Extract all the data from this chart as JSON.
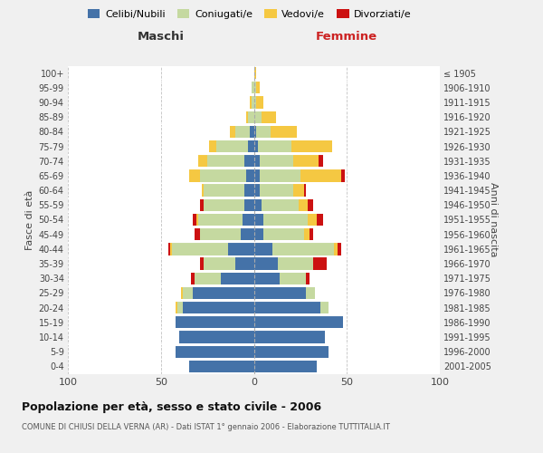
{
  "age_groups": [
    "0-4",
    "5-9",
    "10-14",
    "15-19",
    "20-24",
    "25-29",
    "30-34",
    "35-39",
    "40-44",
    "45-49",
    "50-54",
    "55-59",
    "60-64",
    "65-69",
    "70-74",
    "75-79",
    "80-84",
    "85-89",
    "90-94",
    "95-99",
    "100+"
  ],
  "birth_years": [
    "2001-2005",
    "1996-2000",
    "1991-1995",
    "1986-1990",
    "1981-1985",
    "1976-1980",
    "1971-1975",
    "1966-1970",
    "1961-1965",
    "1956-1960",
    "1951-1955",
    "1946-1950",
    "1941-1945",
    "1936-1940",
    "1931-1935",
    "1926-1930",
    "1921-1925",
    "1916-1920",
    "1911-1915",
    "1906-1910",
    "≤ 1905"
  ],
  "maschi": {
    "celibi": [
      35,
      42,
      40,
      42,
      38,
      33,
      18,
      10,
      14,
      7,
      6,
      5,
      5,
      4,
      5,
      3,
      2,
      0,
      0,
      0,
      0
    ],
    "coniugati": [
      0,
      0,
      0,
      0,
      3,
      5,
      14,
      17,
      30,
      22,
      24,
      22,
      22,
      25,
      20,
      17,
      8,
      3,
      1,
      1,
      0
    ],
    "vedovi": [
      0,
      0,
      0,
      0,
      1,
      1,
      0,
      0,
      1,
      0,
      1,
      0,
      1,
      6,
      5,
      4,
      3,
      1,
      1,
      0,
      0
    ],
    "divorziati": [
      0,
      0,
      0,
      0,
      0,
      0,
      2,
      2,
      1,
      3,
      2,
      2,
      0,
      0,
      0,
      0,
      0,
      0,
      0,
      0,
      0
    ]
  },
  "femmine": {
    "nubili": [
      34,
      40,
      38,
      48,
      36,
      28,
      14,
      13,
      10,
      5,
      5,
      4,
      3,
      3,
      3,
      2,
      1,
      0,
      0,
      0,
      0
    ],
    "coniugate": [
      0,
      0,
      0,
      0,
      4,
      5,
      14,
      19,
      33,
      22,
      24,
      20,
      18,
      22,
      18,
      18,
      8,
      4,
      1,
      1,
      0
    ],
    "vedove": [
      0,
      0,
      0,
      0,
      0,
      0,
      0,
      0,
      2,
      3,
      5,
      5,
      6,
      22,
      14,
      22,
      14,
      8,
      4,
      2,
      1
    ],
    "divorziate": [
      0,
      0,
      0,
      0,
      0,
      0,
      2,
      7,
      2,
      2,
      3,
      3,
      1,
      2,
      2,
      0,
      0,
      0,
      0,
      0,
      0
    ]
  },
  "colors": {
    "celibi": "#4472a8",
    "coniugati": "#c5d9a0",
    "vedovi": "#f5c842",
    "divorziati": "#cc1111"
  },
  "title": "Popolazione per età, sesso e stato civile - 2006",
  "subtitle": "COMUNE DI CHIUSI DELLA VERNA (AR) - Dati ISTAT 1° gennaio 2006 - Elaborazione TUTTITALIA.IT",
  "xlabel_left": "Maschi",
  "xlabel_right": "Femmine",
  "ylabel_left": "Fasce di età",
  "ylabel_right": "Anni di nascita",
  "xlim": 100,
  "legend_labels": [
    "Celibi/Nubili",
    "Coniugati/e",
    "Vedovi/e",
    "Divorziati/e"
  ],
  "background_color": "#f0f0f0",
  "plot_bg_color": "#ffffff",
  "grid_color": "#bbbbbb"
}
